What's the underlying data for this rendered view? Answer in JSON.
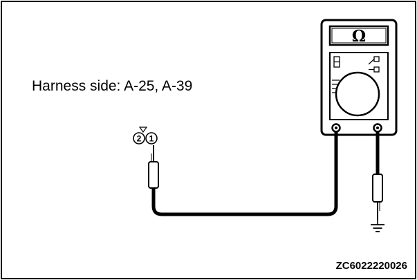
{
  "harness_label": "Harness side: A-25, A-39",
  "figure_code": "ZC6022220026",
  "meter": {
    "display_symbol": "Ω",
    "icon": "ohmmeter-icon"
  },
  "connector": {
    "pins": [
      "2",
      "1"
    ]
  },
  "colors": {
    "line": "#000000",
    "background": "#ffffff"
  }
}
